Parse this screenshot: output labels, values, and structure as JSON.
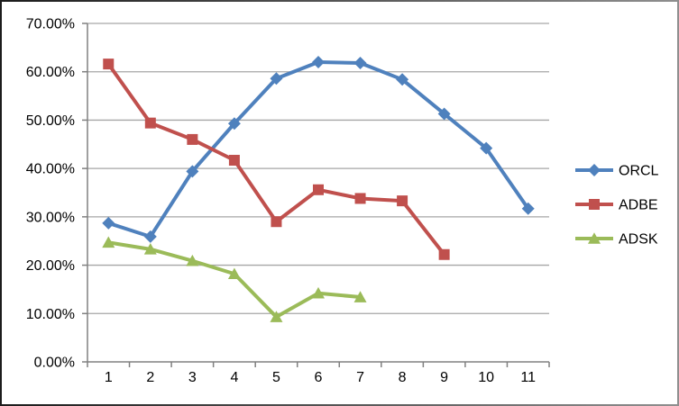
{
  "window": {
    "background": "#ffffff",
    "border_gradient": [
      "#1c1c1c",
      "#8f8f8f"
    ]
  },
  "chart_data": {
    "type": "line",
    "title": "",
    "xlabel": "",
    "ylabel": "",
    "categories": [
      "1",
      "2",
      "3",
      "4",
      "5",
      "6",
      "7",
      "8",
      "9",
      "10",
      "11"
    ],
    "y_axis": {
      "min": 0,
      "max": 70,
      "step": 10,
      "unit": "percent",
      "tick_labels": [
        "0.00%",
        "10.00%",
        "20.00%",
        "30.00%",
        "40.00%",
        "50.00%",
        "60.00%",
        "70.00%"
      ]
    },
    "grid": true,
    "legend_position": "right",
    "axis_color": "#808080",
    "gridline_color": "#a6a6a6",
    "text_color": "#000000",
    "plot_background": "#ffffff",
    "series": [
      {
        "name": "ORCL",
        "color": "#4F81BD",
        "marker": "diamond",
        "values": [
          28.7,
          25.9,
          39.4,
          49.3,
          58.6,
          62.0,
          61.8,
          58.4,
          51.3,
          44.2,
          31.7
        ]
      },
      {
        "name": "ADBE",
        "color": "#C0504D",
        "marker": "square",
        "values": [
          61.6,
          49.4,
          46.0,
          41.7,
          29.0,
          35.6,
          33.8,
          33.3,
          22.2
        ]
      },
      {
        "name": "ADSK",
        "color": "#9BBB59",
        "marker": "triangle",
        "values": [
          24.7,
          23.3,
          20.9,
          18.2,
          9.3,
          14.2,
          13.4
        ]
      }
    ]
  }
}
